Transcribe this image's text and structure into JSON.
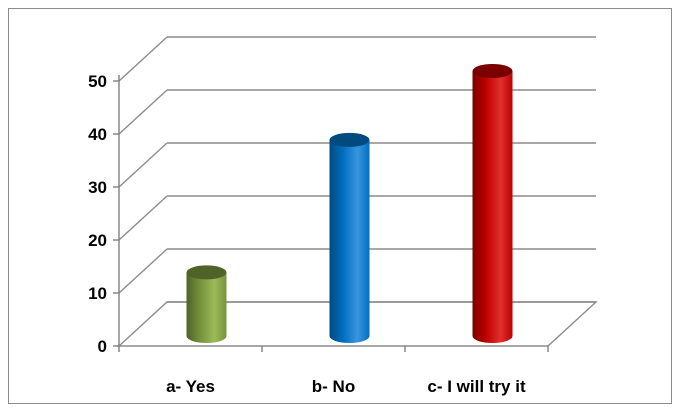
{
  "chart_data": {
    "type": "bar",
    "style": "3d-cylinder",
    "categories": [
      "a- Yes",
      "b- No",
      "c- I will try it"
    ],
    "values": [
      12,
      37,
      50
    ],
    "ylim": [
      0,
      50
    ],
    "yticks": [
      0,
      10,
      20,
      30,
      40,
      50
    ],
    "grid": true,
    "legend": "none",
    "colors": {
      "bars": [
        "#77933C",
        "#0070C0",
        "#C00000"
      ],
      "bars_dark": [
        "#4F6228",
        "#004A80",
        "#7A0000"
      ],
      "bars_light": [
        "#9BBB59",
        "#3A95E0",
        "#E03030"
      ],
      "grid": "#8c8c8c",
      "axis": "#7f7f7f"
    }
  }
}
